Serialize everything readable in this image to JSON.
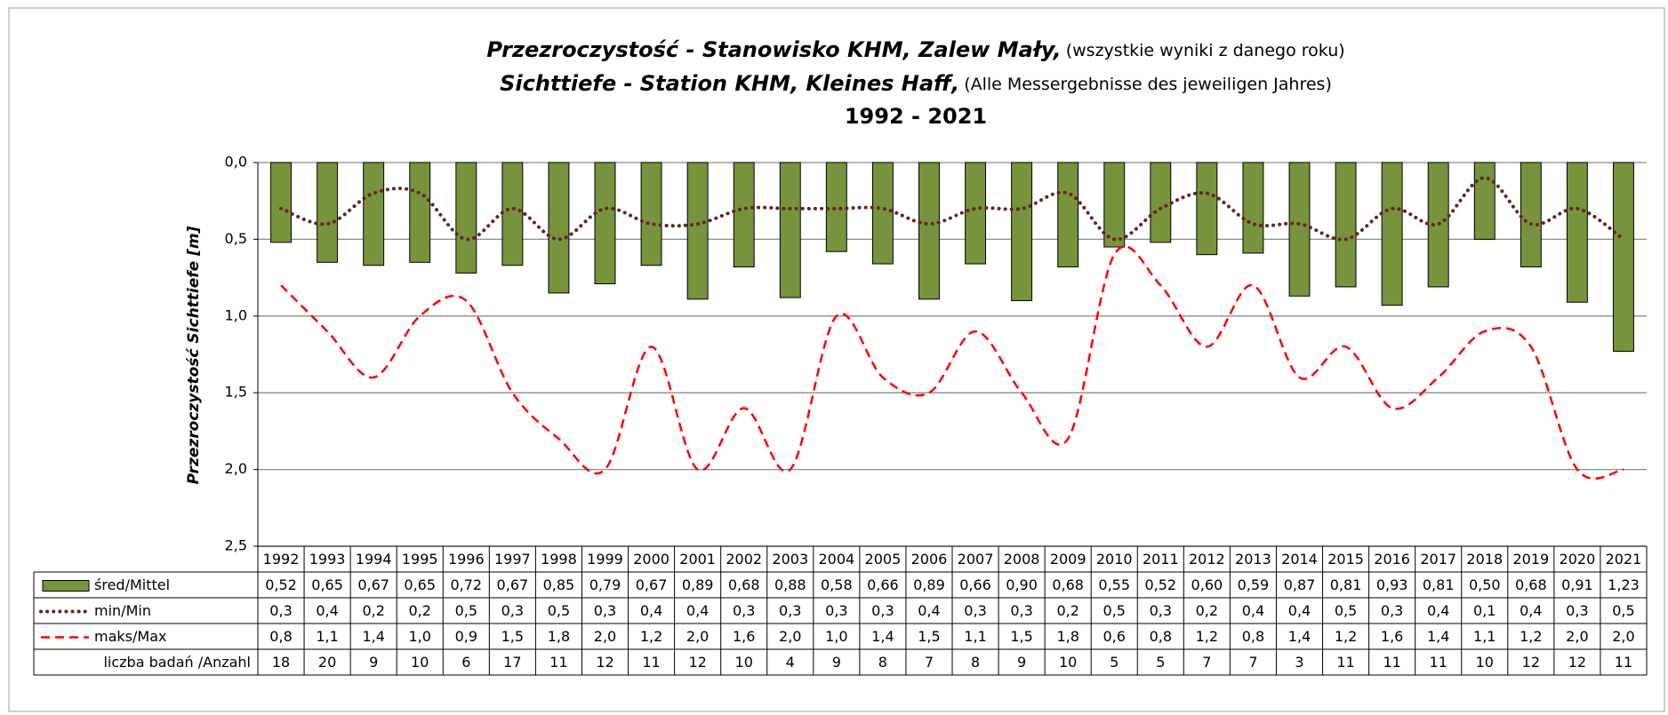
{
  "chart_data": {
    "type": "bar-line",
    "title_lines": [
      {
        "main": "Przezroczystość - Stanowisko KHM, Zalew Mały,",
        "note": "(wszystkie wyniki z danego roku)"
      },
      {
        "main": "Sichttiefe - Station KHM, Kleines Haff,",
        "note": "(Alle Messergebnisse des jeweiligen Jahres)"
      }
    ],
    "subtitle": "1992 - 2021",
    "y_label": "Przezroczystość Sichttiefe [m]",
    "y_inverted": true,
    "ylim": [
      0,
      2.5
    ],
    "yticks": [
      {
        "value": 0,
        "label": "0,0"
      },
      {
        "value": 0.5,
        "label": "0,5"
      },
      {
        "value": 1.0,
        "label": "1,0"
      },
      {
        "value": 1.5,
        "label": "1,5"
      },
      {
        "value": 2.0,
        "label": "2,0"
      },
      {
        "value": 2.5,
        "label": "2,5"
      }
    ],
    "grid": true,
    "categories": [
      "1992",
      "1993",
      "1994",
      "1995",
      "1996",
      "1997",
      "1998",
      "1999",
      "2000",
      "2001",
      "2002",
      "2003",
      "2004",
      "2005",
      "2006",
      "2007",
      "2008",
      "2009",
      "2010",
      "2011",
      "2012",
      "2013",
      "2014",
      "2015",
      "2016",
      "2017",
      "2018",
      "2019",
      "2020",
      "2021"
    ],
    "series": [
      {
        "name": "śred/Mittel",
        "type": "bar",
        "color": "#77933c",
        "values": [
          0.52,
          0.65,
          0.67,
          0.65,
          0.72,
          0.67,
          0.85,
          0.79,
          0.67,
          0.89,
          0.68,
          0.88,
          0.58,
          0.66,
          0.89,
          0.66,
          0.9,
          0.68,
          0.55,
          0.52,
          0.6,
          0.59,
          0.87,
          0.81,
          0.93,
          0.81,
          0.5,
          0.68,
          0.91,
          1.23
        ],
        "value_labels": [
          "0,52",
          "0,65",
          "0,67",
          "0,65",
          "0,72",
          "0,67",
          "0,85",
          "0,79",
          "0,67",
          "0,89",
          "0,68",
          "0,88",
          "0,58",
          "0,66",
          "0,89",
          "0,66",
          "0,90",
          "0,68",
          "0,55",
          "0,52",
          "0,60",
          "0,59",
          "0,87",
          "0,81",
          "0,93",
          "0,81",
          "0,50",
          "0,68",
          "0,91",
          "1,23"
        ]
      },
      {
        "name": "min/Min",
        "type": "line",
        "style": "dotted",
        "color": "#632523",
        "values": [
          0.3,
          0.4,
          0.2,
          0.2,
          0.5,
          0.3,
          0.5,
          0.3,
          0.4,
          0.4,
          0.3,
          0.3,
          0.3,
          0.3,
          0.4,
          0.3,
          0.3,
          0.2,
          0.5,
          0.3,
          0.2,
          0.4,
          0.4,
          0.5,
          0.3,
          0.4,
          0.1,
          0.4,
          0.3,
          0.5
        ],
        "value_labels": [
          "0,3",
          "0,4",
          "0,2",
          "0,2",
          "0,5",
          "0,3",
          "0,5",
          "0,3",
          "0,4",
          "0,4",
          "0,3",
          "0,3",
          "0,3",
          "0,3",
          "0,4",
          "0,3",
          "0,3",
          "0,2",
          "0,5",
          "0,3",
          "0,2",
          "0,4",
          "0,4",
          "0,5",
          "0,3",
          "0,4",
          "0,1",
          "0,4",
          "0,3",
          "0,5"
        ]
      },
      {
        "name": "maks/Max",
        "type": "line",
        "style": "dashed",
        "color": "#ff0000",
        "values": [
          0.8,
          1.1,
          1.4,
          1.0,
          0.9,
          1.5,
          1.8,
          2.0,
          1.2,
          2.0,
          1.6,
          2.0,
          1.0,
          1.4,
          1.5,
          1.1,
          1.5,
          1.8,
          0.6,
          0.8,
          1.2,
          0.8,
          1.4,
          1.2,
          1.6,
          1.4,
          1.1,
          1.2,
          2.0,
          2.0
        ],
        "value_labels": [
          "0,8",
          "1,1",
          "1,4",
          "1,0",
          "0,9",
          "1,5",
          "1,8",
          "2,0",
          "1,2",
          "2,0",
          "1,6",
          "2,0",
          "1,0",
          "1,4",
          "1,5",
          "1,1",
          "1,5",
          "1,8",
          "0,6",
          "0,8",
          "1,2",
          "0,8",
          "1,4",
          "1,2",
          "1,6",
          "1,4",
          "1,1",
          "1,2",
          "2,0",
          "2,0"
        ]
      }
    ],
    "counts": {
      "name": "liczba badań /Anzahl",
      "values": [
        18,
        20,
        9,
        10,
        6,
        17,
        11,
        12,
        11,
        12,
        10,
        4,
        9,
        8,
        7,
        8,
        9,
        10,
        5,
        5,
        7,
        7,
        3,
        11,
        11,
        11,
        10,
        12,
        12,
        11
      ]
    }
  }
}
